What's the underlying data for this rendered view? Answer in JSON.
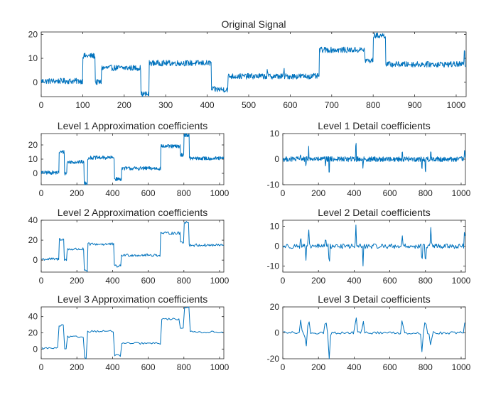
{
  "colors": {
    "line": "#0072BD",
    "axis": "#262626",
    "background": "#ffffff"
  },
  "chart_data": [
    {
      "id": "original",
      "type": "line",
      "title": "Original Signal",
      "xlim": [
        0,
        1024
      ],
      "ylim": [
        -6,
        21
      ],
      "xticks": [
        0,
        100,
        200,
        300,
        400,
        500,
        600,
        700,
        800,
        900,
        1000
      ],
      "yticks": [
        0,
        10,
        20
      ],
      "samples": 1024,
      "noise": 1.2,
      "levels": [
        [
          0,
          0.5
        ],
        [
          100,
          11
        ],
        [
          130,
          0
        ],
        [
          145,
          6
        ],
        [
          240,
          -5
        ],
        [
          260,
          8
        ],
        [
          410,
          -3
        ],
        [
          450,
          2.5
        ],
        [
          670,
          13.5
        ],
        [
          780,
          9
        ],
        [
          800,
          19.5
        ],
        [
          830,
          7.5
        ],
        [
          1024,
          7.5
        ]
      ],
      "spikes": [
        [
          445,
          0
        ],
        [
          545,
          3.5
        ],
        [
          585,
          4
        ],
        [
          1020,
          11
        ]
      ]
    },
    {
      "id": "approx1",
      "type": "line",
      "title": "Level 1 Approximation coefficients",
      "xlim": [
        0,
        1024
      ],
      "ylim": [
        -8,
        28
      ],
      "xticks": [
        0,
        200,
        400,
        600,
        800,
        1000
      ],
      "yticks": [
        0,
        10,
        20
      ],
      "samples": 512,
      "noise": 1.3,
      "levels": [
        [
          0,
          0.5
        ],
        [
          100,
          15
        ],
        [
          130,
          0
        ],
        [
          145,
          8
        ],
        [
          240,
          -7
        ],
        [
          260,
          11
        ],
        [
          410,
          -4
        ],
        [
          450,
          3.5
        ],
        [
          670,
          19
        ],
        [
          780,
          13
        ],
        [
          800,
          27
        ],
        [
          830,
          10.5
        ],
        [
          1024,
          10.5
        ]
      ],
      "spikes": []
    },
    {
      "id": "approx2",
      "type": "line",
      "title": "Level 2 Approximation coefficients",
      "xlim": [
        0,
        1024
      ],
      "ylim": [
        -12,
        40
      ],
      "xticks": [
        0,
        200,
        400,
        600,
        800,
        1000
      ],
      "yticks": [
        0,
        20,
        40
      ],
      "samples": 256,
      "noise": 1.4,
      "levels": [
        [
          0,
          1
        ],
        [
          100,
          21
        ],
        [
          130,
          0
        ],
        [
          145,
          11
        ],
        [
          240,
          -11
        ],
        [
          260,
          16
        ],
        [
          410,
          -6
        ],
        [
          450,
          5
        ],
        [
          670,
          27
        ],
        [
          780,
          18
        ],
        [
          800,
          38
        ],
        [
          830,
          15
        ],
        [
          1024,
          15
        ]
      ],
      "spikes": []
    },
    {
      "id": "approx3",
      "type": "line",
      "title": "Level 3 Approximation coefficients",
      "xlim": [
        0,
        1024
      ],
      "ylim": [
        -12,
        52
      ],
      "xticks": [
        0,
        200,
        400,
        600,
        800,
        1000
      ],
      "yticks": [
        0,
        20,
        40
      ],
      "samples": 128,
      "noise": 1.2,
      "levels": [
        [
          0,
          1
        ],
        [
          100,
          29
        ],
        [
          130,
          0
        ],
        [
          145,
          15
        ],
        [
          240,
          -11
        ],
        [
          260,
          22
        ],
        [
          410,
          -8
        ],
        [
          450,
          7
        ],
        [
          670,
          37
        ],
        [
          780,
          26
        ],
        [
          800,
          52
        ],
        [
          830,
          21
        ],
        [
          1024,
          21
        ]
      ],
      "spikes": []
    },
    {
      "id": "detail1",
      "type": "line",
      "title": "Level 1 Detail coefficients",
      "xlim": [
        0,
        1024
      ],
      "ylim": [
        -10,
        10
      ],
      "xticks": [
        0,
        200,
        400,
        600,
        800,
        1000
      ],
      "yticks": [
        -10,
        0,
        10
      ],
      "samples": 512,
      "noise": 1.0,
      "levels": [],
      "spikes": [
        [
          100,
          4
        ],
        [
          130,
          -5
        ],
        [
          145,
          6
        ],
        [
          240,
          -4
        ],
        [
          260,
          -9
        ],
        [
          410,
          10
        ],
        [
          450,
          -5
        ],
        [
          670,
          5
        ],
        [
          780,
          -6
        ],
        [
          800,
          -9
        ],
        [
          830,
          6
        ],
        [
          1020,
          6
        ]
      ]
    },
    {
      "id": "detail2",
      "type": "line",
      "title": "Level 2 Detail coefficients",
      "xlim": [
        0,
        1024
      ],
      "ylim": [
        -13,
        13
      ],
      "xticks": [
        0,
        200,
        400,
        600,
        800,
        1000
      ],
      "yticks": [
        -10,
        0,
        10
      ],
      "samples": 256,
      "noise": 1.2,
      "levels": [],
      "spikes": [
        [
          100,
          6
        ],
        [
          130,
          -8
        ],
        [
          145,
          9
        ],
        [
          240,
          7
        ],
        [
          260,
          -12
        ],
        [
          410,
          10
        ],
        [
          450,
          -9
        ],
        [
          670,
          6
        ],
        [
          780,
          -10
        ],
        [
          800,
          -12
        ],
        [
          830,
          10
        ],
        [
          1020,
          11
        ]
      ]
    },
    {
      "id": "detail3",
      "type": "line",
      "title": "Level 3 Detail coefficients",
      "xlim": [
        0,
        1024
      ],
      "ylim": [
        -20,
        20
      ],
      "xticks": [
        0,
        200,
        400,
        600,
        800,
        1000
      ],
      "yticks": [
        -20,
        0,
        20
      ],
      "samples": 128,
      "noise": 1.0,
      "levels": [],
      "spikes": [
        [
          100,
          10
        ],
        [
          130,
          -13
        ],
        [
          145,
          14
        ],
        [
          240,
          12
        ],
        [
          260,
          -19
        ],
        [
          410,
          15
        ],
        [
          450,
          12
        ],
        [
          670,
          12
        ],
        [
          780,
          -15
        ],
        [
          800,
          13
        ],
        [
          830,
          -11
        ],
        [
          1020,
          8
        ]
      ]
    }
  ]
}
